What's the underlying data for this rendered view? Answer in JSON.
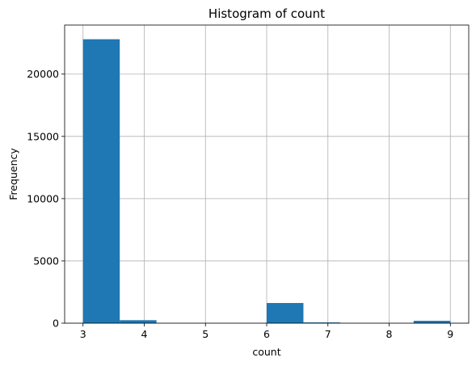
{
  "chart_data": {
    "type": "bar",
    "subtype": "histogram",
    "title": "Histogram of count",
    "xlabel": "count",
    "ylabel": "Frequency",
    "bins": [
      {
        "x0": 3.0,
        "x1": 3.6,
        "value": 22800
      },
      {
        "x0": 3.6,
        "x1": 4.2,
        "value": 240
      },
      {
        "x0": 4.2,
        "x1": 4.8,
        "value": 0
      },
      {
        "x0": 4.8,
        "x1": 5.4,
        "value": 0
      },
      {
        "x0": 5.4,
        "x1": 6.0,
        "value": 0
      },
      {
        "x0": 6.0,
        "x1": 6.6,
        "value": 1620
      },
      {
        "x0": 6.6,
        "x1": 7.2,
        "value": 60
      },
      {
        "x0": 7.2,
        "x1": 7.8,
        "value": 0
      },
      {
        "x0": 7.8,
        "x1": 8.4,
        "value": 0
      },
      {
        "x0": 8.4,
        "x1": 9.0,
        "value": 190
      }
    ],
    "xlim": [
      2.7,
      9.3
    ],
    "ylim": [
      0,
      23940
    ],
    "xticks": [
      3,
      4,
      5,
      6,
      7,
      8,
      9
    ],
    "yticks": [
      0,
      5000,
      10000,
      15000,
      20000
    ],
    "grid": true,
    "legend": "none",
    "colors": {
      "bar": "#1f77b4",
      "grid": "#b0b0b0",
      "axis": "#000000"
    }
  }
}
